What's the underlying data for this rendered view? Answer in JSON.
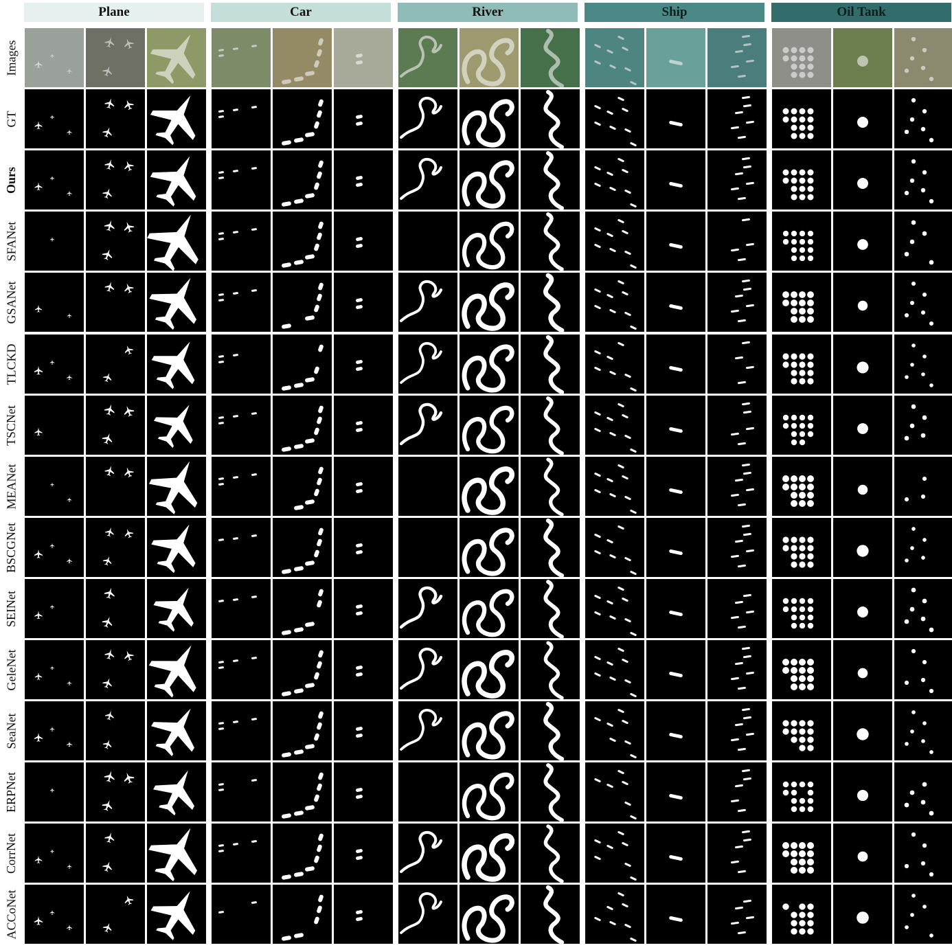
{
  "categories": [
    {
      "label": "Plane",
      "color": "#e6f1ef"
    },
    {
      "label": "Car",
      "color": "#c4dfda"
    },
    {
      "label": "River",
      "color": "#8fbcb7"
    },
    {
      "label": "Ship",
      "color": "#4a8985"
    },
    {
      "label": "Oil Tank",
      "color": "#326d6b"
    }
  ],
  "rows": [
    {
      "label": "Images",
      "bold": false
    },
    {
      "label": "GT",
      "bold": false
    },
    {
      "label": "Ours",
      "bold": true
    },
    {
      "label": "SFANet",
      "bold": false
    },
    {
      "label": "GSANet",
      "bold": false
    },
    {
      "label": "TLCKD",
      "bold": false
    },
    {
      "label": "TSCNet",
      "bold": false
    },
    {
      "label": "MEANet",
      "bold": false
    },
    {
      "label": "BSCGNet",
      "bold": false
    },
    {
      "label": "SEINet",
      "bold": false
    },
    {
      "label": "GeleNet",
      "bold": false
    },
    {
      "label": "SeaNet",
      "bold": false
    },
    {
      "label": "ERPNet",
      "bold": false
    },
    {
      "label": "CorrNet",
      "bold": false
    },
    {
      "label": "ACCoNet",
      "bold": false
    }
  ]
}
